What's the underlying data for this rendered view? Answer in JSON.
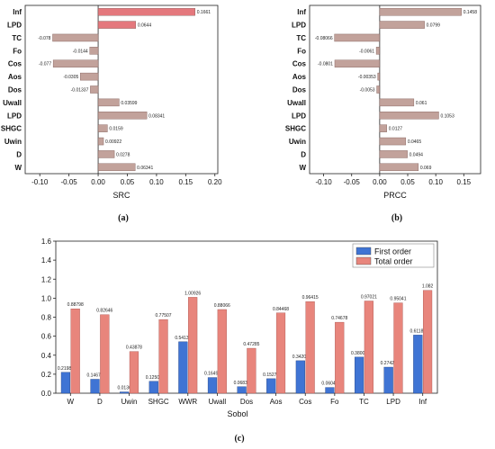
{
  "chart_data": [
    {
      "panel": "(a)",
      "type": "bar",
      "orientation": "horizontal",
      "xlabel": "SRC",
      "xlim": [
        -0.125,
        0.205
      ],
      "xticks": [
        "-0.10",
        "-0.05",
        "0.00",
        "0.05",
        "0.10",
        "0.15",
        "0.20"
      ],
      "categories": [
        "Inf",
        "LPD",
        "TC",
        "Fo",
        "Cos",
        "Aos",
        "Dos",
        "Uwall",
        "LPD",
        "SHGC",
        "Uwin",
        "D",
        "W"
      ],
      "values": [
        0.1661,
        0.0644,
        -0.078,
        -0.0144,
        -0.077,
        -0.0305,
        -0.01337,
        0.03599,
        0.08341,
        0.0159,
        0.00922,
        0.0278,
        0.06341
      ],
      "labels": [
        "0.1661",
        "0.0644",
        "-0.078",
        "-0.0144",
        "-0.077",
        "-0.0305",
        "-0.01337",
        "0.03599",
        "0.08341",
        "0.0159",
        "0.00922",
        "0.0278",
        "0.06341"
      ],
      "colors": {
        "top": "#e4787d",
        "rest": "#c2a29b"
      }
    },
    {
      "panel": "(b)",
      "type": "bar",
      "orientation": "horizontal",
      "xlabel": "PRCC",
      "xlim": [
        -0.125,
        0.18
      ],
      "xticks": [
        "-0.10",
        "-0.05",
        "0.00",
        "0.05",
        "0.10",
        "0.15"
      ],
      "categories": [
        "Inf",
        "LPD",
        "TC",
        "Fo",
        "Cos",
        "Aos",
        "Dos",
        "Uwall",
        "LPD",
        "SHGC",
        "Uwin",
        "D",
        "W"
      ],
      "values": [
        0.1458,
        0.0799,
        -0.08066,
        -0.0061,
        -0.0801,
        -0.00353,
        -0.0053,
        0.061,
        0.1053,
        0.0127,
        0.0465,
        0.0494,
        0.069
      ],
      "labels": [
        "0.1458",
        "0.0799",
        "-0.08066",
        "-0.0061",
        "-0.0801",
        "-0.00353",
        "-0.0053",
        "0.061",
        "0.1053",
        "0.0127",
        "0.0465",
        "0.0494",
        "0.069"
      ],
      "colors": {
        "bar": "#c2a29b"
      }
    },
    {
      "panel": "(c)",
      "type": "bar",
      "xlabel": "Sobol",
      "ylim": [
        0,
        1.6
      ],
      "yticks": [
        "0.0",
        "0.2",
        "0.4",
        "0.6",
        "0.8",
        "1.0",
        "1.2",
        "1.4",
        "1.6"
      ],
      "categories": [
        "W",
        "D",
        "Uwin",
        "SHGC",
        "WWR",
        "Uwall",
        "Dos",
        "Aos",
        "Cos",
        "Fo",
        "TC",
        "LPD",
        "Inf"
      ],
      "legend_position": "top-right",
      "series": [
        {
          "name": "First order",
          "color": "#3f74d4",
          "values": [
            0.21981,
            0.14679,
            0.0136,
            0.12504,
            0.54136,
            0.16497,
            0.06835,
            0.15277,
            0.34201,
            0.06042,
            0.38001,
            0.27425,
            0.61187
          ],
          "labels": [
            "0.21981",
            "0.14679",
            "0.0136",
            "0.12504",
            "0.54136",
            "0.16497",
            "0.06835",
            "0.15277",
            "0.34201",
            "0.06042",
            "0.38001",
            "0.27425",
            "0.61187"
          ]
        },
        {
          "name": "Total order",
          "color": "#e8857c",
          "values": [
            0.88798,
            0.82646,
            0.43878,
            0.77507,
            1.00926,
            0.88066,
            0.47285,
            0.84468,
            0.96415,
            0.74678,
            0.97021,
            0.95041,
            1.082
          ],
          "labels": [
            "0.88798",
            "0.82646",
            "0.43878",
            "0.77507",
            "1.00926",
            "0.88066",
            "0.47285",
            "0.84468",
            "0.96415",
            "0.74678",
            "0.97021",
            "0.95041",
            "1.082"
          ]
        }
      ]
    }
  ]
}
